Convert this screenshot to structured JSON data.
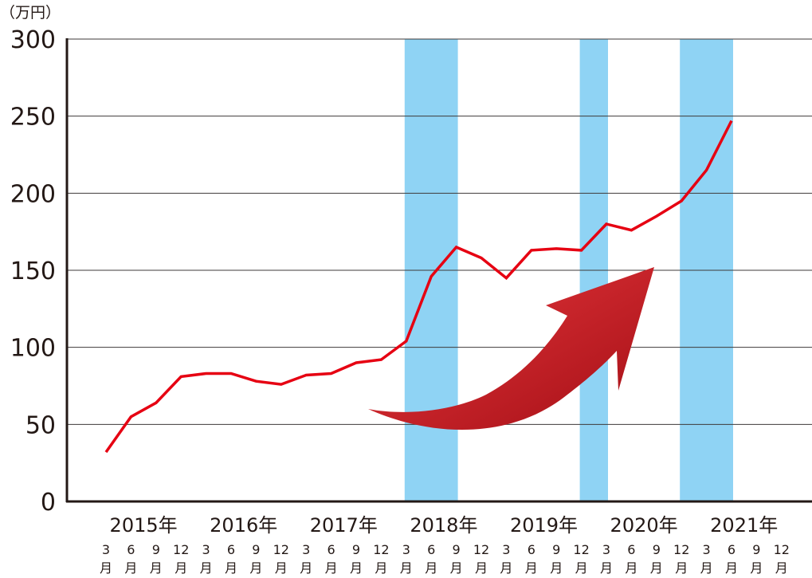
{
  "chart_data": {
    "type": "line",
    "title": "",
    "unit_label": "（万円）",
    "xlabel": "",
    "ylabel": "",
    "ylim": [
      0,
      300
    ],
    "y_ticks": [
      "0",
      "50",
      "100",
      "150",
      "200",
      "250",
      "300"
    ],
    "grid": "horizontal",
    "years": [
      "2015年",
      "2016年",
      "2017年",
      "2018年",
      "2019年",
      "2020年",
      "2021年"
    ],
    "months": [
      "3",
      "6",
      "9",
      "12"
    ],
    "month_suffix": "月",
    "series_color": "#e60012",
    "highlight_color": "#8fd3f4",
    "arrow_color": "#c8161d",
    "x": [
      "2015-03",
      "2015-06",
      "2015-09",
      "2015-12",
      "2016-03",
      "2016-06",
      "2016-09",
      "2016-12",
      "2017-03",
      "2017-06",
      "2017-09",
      "2017-12",
      "2018-03",
      "2018-06",
      "2018-09",
      "2018-12",
      "2019-03",
      "2019-06",
      "2019-09",
      "2019-12",
      "2020-03",
      "2020-06",
      "2020-09",
      "2020-12",
      "2021-03",
      "2021-06"
    ],
    "series": [
      {
        "values": [
          32,
          55,
          64,
          81,
          83,
          83,
          78,
          76,
          82,
          83,
          90,
          92,
          104,
          146,
          165,
          158,
          145,
          163,
          164,
          163,
          180,
          176,
          185,
          195,
          215,
          247
        ]
      }
    ],
    "highlight_periods": [
      {
        "from": "2018-03",
        "to": "2018-09"
      },
      {
        "from": "2019-12",
        "to": "2020-03"
      },
      {
        "from": "2020-12",
        "to": "2021-06"
      }
    ]
  }
}
